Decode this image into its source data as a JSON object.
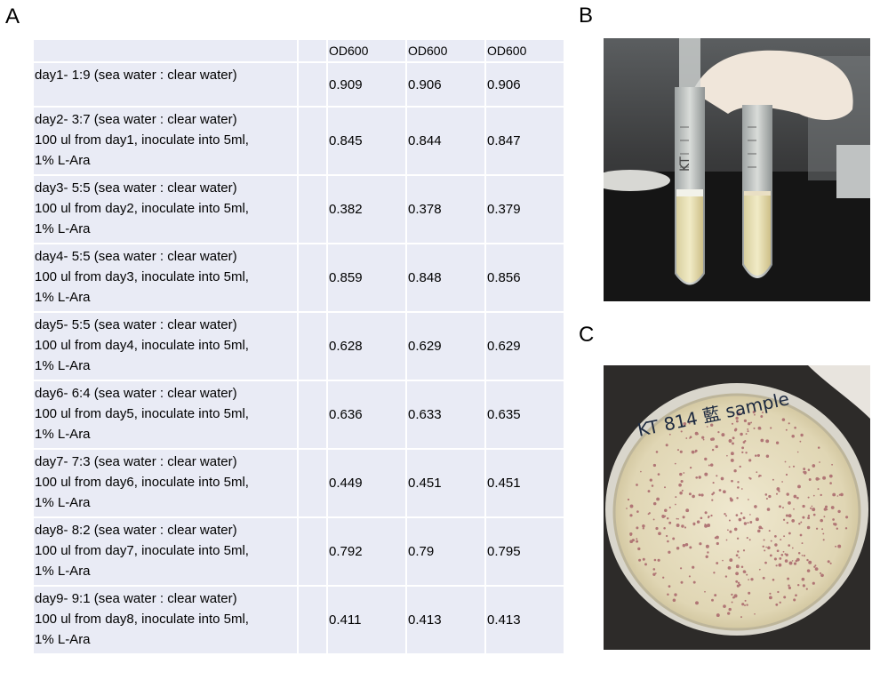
{
  "panels": {
    "a": "A",
    "b": "B",
    "c": "C"
  },
  "table": {
    "headers": [
      "",
      "",
      "OD600",
      "OD600",
      "OD600"
    ],
    "rows": [
      {
        "lines": [
          "day1- 1:9 (sea water : clear water)"
        ],
        "values": [
          "0.909",
          "0.906",
          "0.906"
        ]
      },
      {
        "lines": [
          "day2- 3:7 (sea water : clear water)",
          "100 ul from day1, inoculate into 5ml,",
          "1% L-Ara"
        ],
        "values": [
          "0.845",
          "0.844",
          "0.847"
        ]
      },
      {
        "lines": [
          "day3- 5:5 (sea water : clear water)",
          "100 ul from day2, inoculate into 5ml,",
          "1% L-Ara"
        ],
        "values": [
          "0.382",
          "0.378",
          "0.379"
        ]
      },
      {
        "lines": [
          "day4- 5:5 (sea water : clear water)",
          "100 ul from day3, inoculate into 5ml,",
          "1% L-Ara"
        ],
        "values": [
          "0.859",
          "0.848",
          "0.856"
        ]
      },
      {
        "lines": [
          "day5- 5:5 (sea water : clear water)",
          "100 ul from day4, inoculate into 5ml,",
          "1% L-Ara"
        ],
        "values": [
          "0.628",
          "0.629",
          "0.629"
        ]
      },
      {
        "lines": [
          "day6- 6:4 (sea water : clear water)",
          "100 ul from day5, inoculate into 5ml,",
          "1% L-Ara"
        ],
        "values": [
          "0.636",
          "0.633",
          "0.635"
        ]
      },
      {
        "lines": [
          "day7- 7:3 (sea water : clear water)",
          "100 ul from day6, inoculate into 5ml,",
          "1% L-Ara"
        ],
        "values": [
          "0.449",
          "0.451",
          "0.451"
        ]
      },
      {
        "lines": [
          "day8- 8:2 (sea water : clear water)",
          "100 ul from day7, inoculate into 5ml,",
          "1% L-Ara"
        ],
        "values": [
          "0.792",
          "0.79",
          "0.795"
        ]
      },
      {
        "lines": [
          "day9- 9:1 (sea water : clear water)",
          "100 ul from day8, inoculate into 5ml,",
          "1% L-Ara"
        ],
        "values": [
          "0.411",
          "0.413",
          "0.413"
        ]
      }
    ]
  },
  "photos": {
    "b_label": "KT",
    "c_label": "KT 814 藍 sample"
  },
  "colors": {
    "cell_fill": "#e9ebf5",
    "cell_border": "#ffffff"
  }
}
